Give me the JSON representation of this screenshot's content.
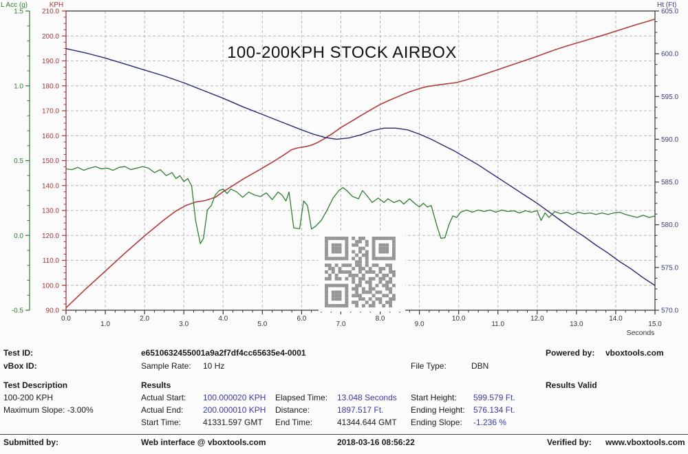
{
  "chart_data": {
    "type": "line",
    "title": "100-200KPH STOCK AIRBOX",
    "grid": true,
    "x_axis": {
      "label": "Seconds",
      "min": 0,
      "max": 15,
      "ticks": [
        0,
        1,
        2,
        3,
        4,
        5,
        6,
        7,
        8,
        9,
        10,
        11,
        12,
        13,
        14,
        15
      ],
      "minor_step": 0.25,
      "tick_format_decimals": 1
    },
    "axes": {
      "acc": {
        "label": "L Acc (g)",
        "min": -0.5,
        "max": 1.5,
        "ticks": [
          1.5,
          1.0,
          0.5,
          0.0,
          -0.5
        ],
        "minor_step": 0.1,
        "color": "#2e7d2e"
      },
      "kph": {
        "label": "KPH",
        "min": 90,
        "max": 210,
        "ticks": [
          210,
          200,
          190,
          180,
          170,
          160,
          150,
          140,
          130,
          120,
          110,
          100,
          90
        ],
        "minor_step": 2.5,
        "color": "#a33434"
      },
      "ht": {
        "label": "Ht (Ft)",
        "min": 570,
        "max": 605,
        "ticks": [
          605,
          600,
          595,
          590,
          585,
          580,
          575,
          570
        ],
        "minor_step": 1.25,
        "color": "#3d3d7d"
      }
    },
    "series": [
      {
        "name": "Speed",
        "unit": "KPH",
        "axis": "kph",
        "color": "#b13a3a",
        "width": 1.6,
        "points": [
          [
            0,
            91
          ],
          [
            0.5,
            98.5
          ],
          [
            1,
            105.7
          ],
          [
            1.5,
            112.9
          ],
          [
            2,
            119.8
          ],
          [
            2.5,
            126.3
          ],
          [
            2.8,
            129.8
          ],
          [
            3.05,
            132
          ],
          [
            3.3,
            133.4
          ],
          [
            3.55,
            134
          ],
          [
            3.8,
            135.3
          ],
          [
            4,
            137.5
          ],
          [
            4.5,
            142.5
          ],
          [
            5,
            147
          ],
          [
            5.3,
            149.8
          ],
          [
            5.55,
            152.3
          ],
          [
            5.75,
            154.4
          ],
          [
            5.9,
            155.1
          ],
          [
            6.1,
            155.6
          ],
          [
            6.25,
            156.2
          ],
          [
            6.4,
            157.2
          ],
          [
            6.6,
            159
          ],
          [
            6.8,
            161
          ],
          [
            7,
            163.3
          ],
          [
            7.25,
            165.6
          ],
          [
            7.5,
            168
          ],
          [
            7.75,
            170.3
          ],
          [
            8,
            172.5
          ],
          [
            8.25,
            174.3
          ],
          [
            8.5,
            176
          ],
          [
            8.75,
            177.6
          ],
          [
            9,
            178.9
          ],
          [
            9.2,
            179.7
          ],
          [
            9.45,
            180.3
          ],
          [
            9.7,
            180.8
          ],
          [
            9.95,
            181.3
          ],
          [
            10.2,
            182.4
          ],
          [
            10.45,
            183.6
          ],
          [
            10.7,
            184.9
          ],
          [
            11,
            186.5
          ],
          [
            11.3,
            188.1
          ],
          [
            11.6,
            189.7
          ],
          [
            11.9,
            191.3
          ],
          [
            12.2,
            193
          ],
          [
            12.5,
            194.7
          ],
          [
            12.8,
            196.2
          ],
          [
            13.1,
            197.6
          ],
          [
            13.4,
            199
          ],
          [
            13.7,
            200.4
          ],
          [
            14,
            201.9
          ],
          [
            14.3,
            203.4
          ],
          [
            14.6,
            204.9
          ],
          [
            14.85,
            206
          ],
          [
            15,
            206.8
          ]
        ]
      },
      {
        "name": "Height",
        "unit": "Ft",
        "axis": "ht",
        "color": "#26266e",
        "width": 1.4,
        "points": [
          [
            0,
            600.6
          ],
          [
            0.5,
            600.1
          ],
          [
            1,
            599.5
          ],
          [
            1.5,
            598.8
          ],
          [
            2,
            598.1
          ],
          [
            2.5,
            597.4
          ],
          [
            3,
            596.6
          ],
          [
            3.5,
            595.7
          ],
          [
            4,
            594.8
          ],
          [
            4.5,
            593.8
          ],
          [
            5,
            592.9
          ],
          [
            5.5,
            592.0
          ],
          [
            6,
            591.1
          ],
          [
            6.3,
            590.6
          ],
          [
            6.6,
            590.2
          ],
          [
            6.9,
            590.0
          ],
          [
            7.2,
            590.15
          ],
          [
            7.5,
            590.5
          ],
          [
            7.8,
            591.0
          ],
          [
            8.1,
            591.3
          ],
          [
            8.4,
            591.3
          ],
          [
            8.7,
            591.1
          ],
          [
            9,
            590.6
          ],
          [
            9.3,
            590.0
          ],
          [
            9.6,
            589.3
          ],
          [
            9.9,
            588.6
          ],
          [
            10.2,
            587.8
          ],
          [
            10.5,
            587.0
          ],
          [
            10.8,
            586.1
          ],
          [
            11.1,
            585.2
          ],
          [
            11.4,
            584.3
          ],
          [
            11.7,
            583.4
          ],
          [
            12,
            582.5
          ],
          [
            12.3,
            581.5
          ],
          [
            12.6,
            580.5
          ],
          [
            12.9,
            579.5
          ],
          [
            13.2,
            578.6
          ],
          [
            13.5,
            577.6
          ],
          [
            13.8,
            576.7
          ],
          [
            14.1,
            575.7
          ],
          [
            14.4,
            574.8
          ],
          [
            14.7,
            573.8
          ],
          [
            15,
            572.9
          ]
        ]
      },
      {
        "name": "Lateral Acceleration",
        "unit": "g",
        "axis": "acc",
        "color": "#2e7d2e",
        "width": 1.3,
        "points": [
          [
            0,
            0.445
          ],
          [
            0.15,
            0.44
          ],
          [
            0.3,
            0.455
          ],
          [
            0.45,
            0.435
          ],
          [
            0.6,
            0.45
          ],
          [
            0.75,
            0.46
          ],
          [
            0.9,
            0.445
          ],
          [
            1.05,
            0.45
          ],
          [
            1.2,
            0.435
          ],
          [
            1.35,
            0.455
          ],
          [
            1.5,
            0.46
          ],
          [
            1.65,
            0.44
          ],
          [
            1.8,
            0.45
          ],
          [
            1.95,
            0.46
          ],
          [
            2.1,
            0.45
          ],
          [
            2.25,
            0.42
          ],
          [
            2.4,
            0.44
          ],
          [
            2.55,
            0.4
          ],
          [
            2.7,
            0.42
          ],
          [
            2.8,
            0.38
          ],
          [
            2.9,
            0.4
          ],
          [
            3.0,
            0.36
          ],
          [
            3.1,
            0.38
          ],
          [
            3.2,
            0.33
          ],
          [
            3.3,
            0.1
          ],
          [
            3.42,
            -0.055
          ],
          [
            3.5,
            -0.02
          ],
          [
            3.6,
            0.17
          ],
          [
            3.7,
            0.2
          ],
          [
            3.8,
            0.27
          ],
          [
            3.9,
            0.3
          ],
          [
            4.0,
            0.31
          ],
          [
            4.1,
            0.28
          ],
          [
            4.2,
            0.31
          ],
          [
            4.35,
            0.29
          ],
          [
            4.5,
            0.255
          ],
          [
            4.65,
            0.29
          ],
          [
            4.8,
            0.27
          ],
          [
            4.95,
            0.26
          ],
          [
            5.1,
            0.285
          ],
          [
            5.25,
            0.24
          ],
          [
            5.4,
            0.29
          ],
          [
            5.5,
            0.27
          ],
          [
            5.6,
            0.23
          ],
          [
            5.68,
            0.29
          ],
          [
            5.8,
            0.05
          ],
          [
            5.95,
            0.045
          ],
          [
            6.05,
            0.23
          ],
          [
            6.15,
            0.2
          ],
          [
            6.25,
            0.043
          ],
          [
            6.35,
            0.06
          ],
          [
            6.5,
            0.1
          ],
          [
            6.65,
            0.17
          ],
          [
            6.8,
            0.25
          ],
          [
            6.95,
            0.3
          ],
          [
            7.05,
            0.32
          ],
          [
            7.15,
            0.3
          ],
          [
            7.3,
            0.26
          ],
          [
            7.45,
            0.245
          ],
          [
            7.55,
            0.3
          ],
          [
            7.65,
            0.27
          ],
          [
            7.8,
            0.22
          ],
          [
            7.95,
            0.25
          ],
          [
            8.1,
            0.22
          ],
          [
            8.2,
            0.245
          ],
          [
            8.35,
            0.22
          ],
          [
            8.5,
            0.235
          ],
          [
            8.6,
            0.21
          ],
          [
            8.75,
            0.245
          ],
          [
            8.9,
            0.21
          ],
          [
            9.0,
            0.19
          ],
          [
            9.1,
            0.215
          ],
          [
            9.2,
            0.19
          ],
          [
            9.3,
            0.2
          ],
          [
            9.45,
            0.06
          ],
          [
            9.55,
            -0.02
          ],
          [
            9.65,
            -0.015
          ],
          [
            9.75,
            0.07
          ],
          [
            9.85,
            0.13
          ],
          [
            9.95,
            0.12
          ],
          [
            10.05,
            0.155
          ],
          [
            10.2,
            0.17
          ],
          [
            10.35,
            0.155
          ],
          [
            10.5,
            0.17
          ],
          [
            10.65,
            0.16
          ],
          [
            10.8,
            0.17
          ],
          [
            10.95,
            0.155
          ],
          [
            11.1,
            0.17
          ],
          [
            11.25,
            0.16
          ],
          [
            11.4,
            0.165
          ],
          [
            11.55,
            0.15
          ],
          [
            11.7,
            0.165
          ],
          [
            11.85,
            0.155
          ],
          [
            12.0,
            0.165
          ],
          [
            12.1,
            0.1
          ],
          [
            12.2,
            0.15
          ],
          [
            12.3,
            0.12
          ],
          [
            12.45,
            0.16
          ],
          [
            12.6,
            0.145
          ],
          [
            12.75,
            0.155
          ],
          [
            12.9,
            0.14
          ],
          [
            13.05,
            0.155
          ],
          [
            13.2,
            0.145
          ],
          [
            13.35,
            0.15
          ],
          [
            13.5,
            0.14
          ],
          [
            13.65,
            0.15
          ],
          [
            13.8,
            0.14
          ],
          [
            13.95,
            0.15
          ],
          [
            14.1,
            0.155
          ],
          [
            14.25,
            0.14
          ],
          [
            14.4,
            0.13
          ],
          [
            14.55,
            0.12
          ],
          [
            14.7,
            0.135
          ],
          [
            14.85,
            0.12
          ],
          [
            15,
            0.13
          ]
        ]
      }
    ],
    "qr_color": "#969696",
    "qr_matrix": [
      "111111101011001111111",
      "100000100110101000001",
      "101110101100101011101",
      "101110100011001011101",
      "101110101010101011101",
      "100000100101101000001",
      "111111101010101111111",
      "000000000110100000000",
      "110101110110101100110",
      "011010001011010011010",
      "101011110010111010011",
      "010100011101000101101",
      "110110101011011011010",
      "000000001010110010110",
      "111111100110010101101",
      "100000101101011000110",
      "101110100101110110010",
      "101110101110001001101",
      "101110100011010110011",
      "100000101100101010110",
      "111111100101011001010"
    ]
  },
  "info": {
    "test_id_label": "Test ID:",
    "test_id_value": "e6510632455001a9a2f7df4cc65635e4-0001",
    "vbox_id_label": "vBox ID:",
    "sample_rate_label": "Sample Rate:",
    "sample_rate_value": "10 Hz",
    "file_type_label": "File Type:",
    "file_type_value": "DBN",
    "powered_by_label": "Powered by:",
    "powered_by_value": "vboxtools.com",
    "results_valid": "Results Valid",
    "test_description_header": "Test Description",
    "test_description_line1": "100-200 KPH",
    "test_description_line2": "Maximum Slope:  -3.00%",
    "results_header": "Results",
    "actual_start_label": "Actual Start:",
    "actual_start_value": "100.000020 KPH",
    "actual_end_label": "Actual End:",
    "actual_end_value": "200.000010 KPH",
    "start_time_label": "Start Time:",
    "start_time_value": "41331.597 GMT",
    "elapsed_time_label": "Elapsed Time:",
    "elapsed_time_value": "13.048 Seconds",
    "distance_label": "Distance:",
    "distance_value": "1897.517 Ft.",
    "end_time_label": "End Time:",
    "end_time_value": "41344.644 GMT",
    "start_height_label": "Start Height:",
    "start_height_value": "599.579 Ft.",
    "ending_height_label": "Ending Height:",
    "ending_height_value": "576.134 Ft.",
    "ending_slope_label": "Ending Slope:",
    "ending_slope_value": "-1.236 %"
  },
  "footer": {
    "submitted_by_label": "Submitted by:",
    "submitted_via": "Web interface @ vboxtools.com",
    "timestamp": "2018-03-16 08:56:22",
    "verified_by_label": "Verified by:",
    "verified_by_value": "www.vboxtools.com"
  },
  "colors": {
    "value_blue": "#3a3aa6",
    "grid": "#b8b8b8",
    "axis_black": "#333333"
  }
}
